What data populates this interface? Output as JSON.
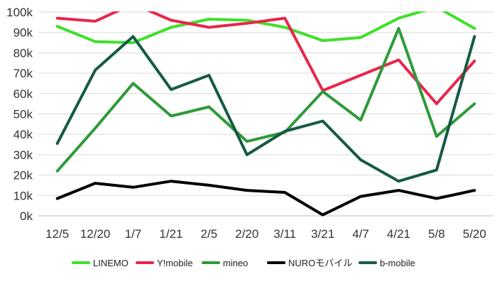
{
  "chart_data": {
    "type": "line",
    "categories": [
      "12/5",
      "12/20",
      "1/7",
      "1/21",
      "2/5",
      "2/20",
      "3/11",
      "3/21",
      "4/7",
      "4/21",
      "5/8",
      "5/20"
    ],
    "y_ticks": [
      "0k",
      "10k",
      "20k",
      "30k",
      "40k",
      "50k",
      "60k",
      "70k",
      "80k",
      "90k",
      "100k"
    ],
    "ylim": [
      0,
      100000
    ],
    "grid": true,
    "legend_position": "bottom",
    "series": [
      {
        "name": "LINEMO",
        "color": "#3fe02a",
        "values": [
          93000,
          85500,
          85000,
          92500,
          96500,
          96000,
          92500,
          86000,
          87500,
          97000,
          102500,
          92000
        ]
      },
      {
        "name": "Y!mobile",
        "color": "#e8264b",
        "values": [
          97000,
          95500,
          104000,
          96000,
          92500,
          94500,
          97000,
          61500,
          69000,
          76500,
          55000,
          76000
        ]
      },
      {
        "name": "mineo",
        "color": "#2e9a3a",
        "values": [
          22000,
          43000,
          65000,
          49000,
          53500,
          36500,
          41000,
          61000,
          47000,
          92000,
          39000,
          55000
        ]
      },
      {
        "name": "NUROモバイル",
        "color": "#000000",
        "values": [
          8500,
          16000,
          14000,
          17000,
          15000,
          12500,
          11500,
          500,
          9500,
          12500,
          8500,
          12500
        ]
      },
      {
        "name": "b-mobile",
        "color": "#155a44",
        "values": [
          35500,
          71500,
          88000,
          62000,
          69000,
          30000,
          41500,
          46500,
          27500,
          17000,
          22500,
          88000
        ]
      }
    ]
  }
}
